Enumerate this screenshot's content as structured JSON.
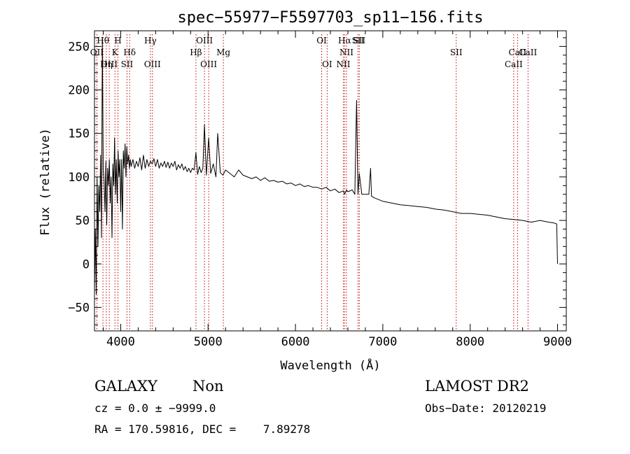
{
  "chart_data": {
    "type": "line",
    "title": "spec−55977−F5597703_sp11−156.fits",
    "xlabel": "Wavelength (Å)",
    "ylabel": "Flux (relative)",
    "xlim": [
      3700,
      9100
    ],
    "ylim": [
      -77,
      268
    ],
    "xticks": [
      4000,
      5000,
      6000,
      7000,
      8000,
      9000
    ],
    "yticks": [
      -50,
      0,
      50,
      100,
      150,
      200,
      250
    ],
    "grid": false,
    "line_color": "#000000",
    "marker_color": "#c00000",
    "series": [
      {
        "x": [
          3700,
          3710,
          3720,
          3730,
          3740,
          3750,
          3760,
          3770,
          3780,
          3790,
          3800,
          3810,
          3820,
          3830,
          3840,
          3850,
          3860,
          3870,
          3880,
          3890,
          3900,
          3910,
          3920,
          3930,
          3940,
          3950,
          3960,
          3970,
          3980,
          3990,
          4000,
          4010,
          4020,
          4030,
          4040,
          4050,
          4060,
          4070,
          4080,
          4090,
          4100,
          4110,
          4120,
          4140,
          4160,
          4180,
          4200,
          4220,
          4240,
          4260,
          4280,
          4300,
          4320,
          4340,
          4360,
          4380,
          4400,
          4420,
          4440,
          4460,
          4480,
          4500,
          4520,
          4540,
          4560,
          4580,
          4600,
          4620,
          4640,
          4660,
          4680,
          4700,
          4720,
          4740,
          4760,
          4780,
          4800,
          4820,
          4840,
          4861,
          4880,
          4900,
          4920,
          4940,
          4959,
          4980,
          5007,
          5030,
          5060,
          5090,
          5110,
          5140,
          5170,
          5200,
          5250,
          5300,
          5350,
          5400,
          5450,
          5500,
          5550,
          5600,
          5650,
          5700,
          5750,
          5800,
          5850,
          5900,
          5950,
          6000,
          6050,
          6100,
          6150,
          6200,
          6250,
          6300,
          6350,
          6400,
          6450,
          6500,
          6548,
          6563,
          6584,
          6600,
          6650,
          6680,
          6700,
          6716,
          6731,
          6760,
          6800,
          6840,
          6860,
          6870,
          6900,
          6950,
          7000,
          7100,
          7200,
          7300,
          7400,
          7500,
          7600,
          7700,
          7800,
          7900,
          8000,
          8100,
          8200,
          8300,
          8400,
          8500,
          8600,
          8700,
          8800,
          8900,
          8960,
          8990,
          9000
        ],
        "y": [
          -30,
          40,
          -35,
          100,
          20,
          90,
          60,
          125,
          30,
          260,
          110,
          95,
          60,
          118,
          45,
          110,
          90,
          120,
          70,
          100,
          30,
          115,
          90,
          145,
          80,
          120,
          70,
          130,
          100,
          120,
          60,
          120,
          40,
          130,
          110,
          138,
          100,
          135,
          115,
          125,
          110,
          120,
          112,
          120,
          110,
          118,
          112,
          122,
          108,
          125,
          110,
          120,
          112,
          118,
          115,
          121,
          112,
          120,
          110,
          116,
          112,
          118,
          111,
          117,
          110,
          116,
          112,
          118,
          108,
          114,
          110,
          115,
          108,
          112,
          106,
          110,
          105,
          110,
          108,
          128,
          103,
          112,
          105,
          110,
          160,
          102,
          145,
          104,
          115,
          100,
          150,
          105,
          102,
          108,
          104,
          100,
          108,
          102,
          100,
          98,
          100,
          96,
          99,
          95,
          96,
          94,
          95,
          92,
          93,
          90,
          92,
          89,
          90,
          88,
          88,
          86,
          88,
          84,
          86,
          82,
          84,
          80,
          85,
          83,
          85,
          80,
          188,
          80,
          104,
          80,
          80,
          80,
          110,
          78,
          76,
          74,
          72,
          70,
          68,
          67,
          66,
          65,
          63,
          62,
          60,
          58,
          58,
          57,
          56,
          54,
          52,
          51,
          50,
          48,
          50,
          48,
          47,
          46,
          0
        ]
      }
    ],
    "line_markers": [
      {
        "label": "Hθ",
        "wave": 3797,
        "row": 0
      },
      {
        "label": "OII",
        "wave": 3727,
        "row": 1
      },
      {
        "label": "OIII",
        "wave": 3869,
        "row": 2
      },
      {
        "label": "Hη",
        "wave": 3835,
        "row": 2
      },
      {
        "label": "H",
        "wave": 3968,
        "row": 0
      },
      {
        "label": "K",
        "wave": 3934,
        "row": 1
      },
      {
        "label": "Hδ",
        "wave": 4102,
        "row": 1
      },
      {
        "label": "SII",
        "wave": 4072,
        "row": 2
      },
      {
        "label": "Hγ",
        "wave": 4340,
        "row": 0
      },
      {
        "label": "OIII",
        "wave": 4363,
        "row": 2
      },
      {
        "label": "OIII",
        "wave": 4959,
        "row": 0
      },
      {
        "label": "Hβ",
        "wave": 4861,
        "row": 1
      },
      {
        "label": "Mg",
        "wave": 5175,
        "row": 1
      },
      {
        "label": "OIII",
        "wave": 5007,
        "row": 2
      },
      {
        "label": "OI",
        "wave": 6300,
        "row": 0
      },
      {
        "label": "OI",
        "wave": 6363,
        "row": 2
      },
      {
        "label": "Hα",
        "wave": 6563,
        "row": 0
      },
      {
        "label": "SII",
        "wave": 6716,
        "row": 0
      },
      {
        "label": "NII",
        "wave": 6584,
        "row": 1
      },
      {
        "label": "NII",
        "wave": 6548,
        "row": 2
      },
      {
        "label": "SII",
        "wave": 6731,
        "row": 0
      },
      {
        "label": "SII",
        "wave": 7840,
        "row": 1
      },
      {
        "label": "CaII",
        "wave": 8542,
        "row": 1
      },
      {
        "label": "CaII",
        "wave": 8498,
        "row": 2
      },
      {
        "label": "CaII",
        "wave": 8662,
        "row": 1
      }
    ]
  },
  "footer": {
    "object_class": "GALAXY",
    "subclass": "Non",
    "survey": "LAMOST DR2",
    "cz": "cz = 0.0 ± −9999.0",
    "obs_date": "Obs−Date: 20120219",
    "radec": "RA = 170.59816, DEC =    7.89278"
  }
}
